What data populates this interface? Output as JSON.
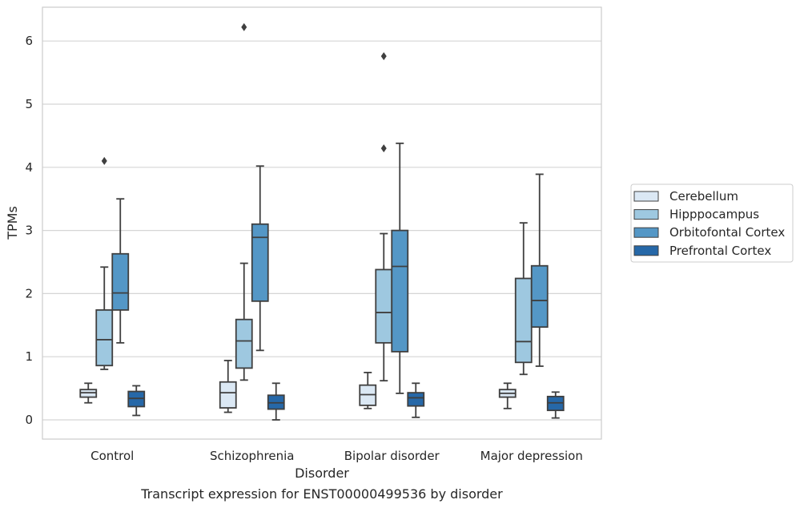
{
  "chart_data": {
    "type": "box",
    "title": "",
    "caption": "Transcript expression for ENST00000499536 by disorder",
    "xlabel": "Disorder",
    "ylabel": "TPMs",
    "ylim": [
      -0.3,
      6.55
    ],
    "yticks": [
      0,
      1,
      2,
      3,
      4,
      5,
      6
    ],
    "grid": "horizontal",
    "legend_position": "right",
    "categories": [
      "Control",
      "Schizophrenia",
      "Bipolar disorder",
      "Major depression"
    ],
    "series": [
      {
        "name": "Cerebellum",
        "color": "#dbe8f4",
        "boxes": [
          {
            "whislo": 0.27,
            "q1": 0.36,
            "med": 0.43,
            "q3": 0.48,
            "whishi": 0.58,
            "fliers": []
          },
          {
            "whislo": 0.12,
            "q1": 0.19,
            "med": 0.43,
            "q3": 0.6,
            "whishi": 0.94,
            "fliers": []
          },
          {
            "whislo": 0.18,
            "q1": 0.23,
            "med": 0.4,
            "q3": 0.55,
            "whishi": 0.75,
            "fliers": []
          },
          {
            "whislo": 0.18,
            "q1": 0.36,
            "med": 0.42,
            "q3": 0.48,
            "whishi": 0.58,
            "fliers": []
          }
        ]
      },
      {
        "name": "Hipppocampus",
        "color": "#9ec8e0",
        "boxes": [
          {
            "whislo": 0.8,
            "q1": 0.86,
            "med": 1.27,
            "q3": 1.74,
            "whishi": 2.42,
            "fliers": [
              4.1
            ]
          },
          {
            "whislo": 0.63,
            "q1": 0.82,
            "med": 1.25,
            "q3": 1.59,
            "whishi": 2.48,
            "fliers": [
              6.22
            ]
          },
          {
            "whislo": 0.62,
            "q1": 1.22,
            "med": 1.7,
            "q3": 2.38,
            "whishi": 2.95,
            "fliers": [
              4.3,
              5.76
            ]
          },
          {
            "whislo": 0.72,
            "q1": 0.91,
            "med": 1.24,
            "q3": 2.24,
            "whishi": 3.12,
            "fliers": []
          }
        ]
      },
      {
        "name": "Orbitofontal Cortex",
        "color": "#5497c6",
        "boxes": [
          {
            "whislo": 1.22,
            "q1": 1.74,
            "med": 2.01,
            "q3": 2.63,
            "whishi": 3.5,
            "fliers": []
          },
          {
            "whislo": 1.1,
            "q1": 1.88,
            "med": 2.89,
            "q3": 3.1,
            "whishi": 4.02,
            "fliers": []
          },
          {
            "whislo": 0.42,
            "q1": 1.08,
            "med": 2.43,
            "q3": 3.0,
            "whishi": 4.38,
            "fliers": []
          },
          {
            "whislo": 0.85,
            "q1": 1.47,
            "med": 1.89,
            "q3": 2.44,
            "whishi": 3.89,
            "fliers": []
          }
        ]
      },
      {
        "name": "Prefrontal Cortex",
        "color": "#2668a8",
        "boxes": [
          {
            "whislo": 0.07,
            "q1": 0.21,
            "med": 0.34,
            "q3": 0.45,
            "whishi": 0.54,
            "fliers": []
          },
          {
            "whislo": 0.0,
            "q1": 0.17,
            "med": 0.27,
            "q3": 0.39,
            "whishi": 0.58,
            "fliers": []
          },
          {
            "whislo": 0.04,
            "q1": 0.22,
            "med": 0.35,
            "q3": 0.43,
            "whishi": 0.58,
            "fliers": []
          },
          {
            "whislo": 0.03,
            "q1": 0.15,
            "med": 0.27,
            "q3": 0.37,
            "whishi": 0.44,
            "fliers": []
          }
        ]
      }
    ]
  }
}
